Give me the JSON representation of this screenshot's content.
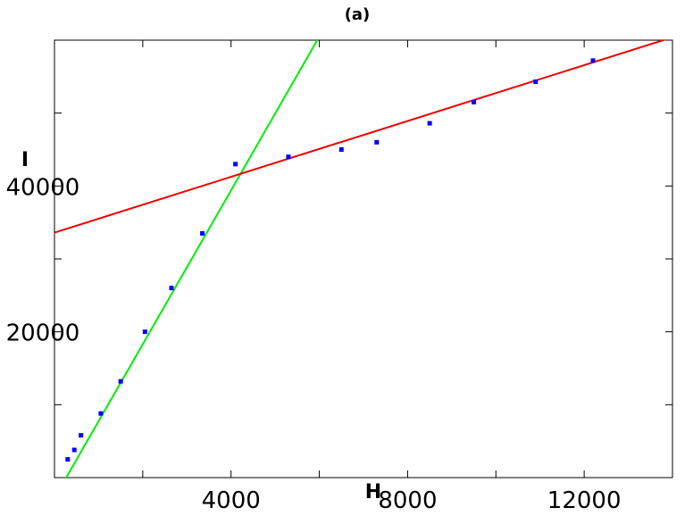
{
  "chart_data": {
    "type": "scatter",
    "title": "(a)",
    "xlabel": "H",
    "ylabel": "I",
    "xlim": [
      0,
      14000
    ],
    "ylim": [
      0,
      60000
    ],
    "xticks": [
      4000,
      8000,
      12000
    ],
    "xtick_labels": [
      "4000",
      "8000",
      "12000"
    ],
    "xticks_minor": [
      2000,
      6000,
      10000
    ],
    "yticks": [
      20000,
      40000
    ],
    "ytick_labels": [
      "20000",
      "40000"
    ],
    "yticks_minor": [
      10000,
      30000,
      50000
    ],
    "grid": false,
    "legend": "none",
    "points": {
      "color": "#0000ff",
      "x": [
        300,
        450,
        600,
        1050,
        1500,
        2050,
        2650,
        3350,
        4100,
        5300,
        6500,
        7300,
        8500,
        9500,
        10900,
        12200
      ],
      "y": [
        2500,
        3800,
        5800,
        8800,
        13200,
        20000,
        26000,
        33500,
        43000,
        44000,
        45000,
        46000,
        48600,
        51500,
        54300,
        57200
      ]
    },
    "fit_lines": [
      {
        "color": "#00ee00",
        "x": [
          0,
          6000
        ],
        "y": [
          -2800,
          60500
        ]
      },
      {
        "color": "#ee0000",
        "x": [
          0,
          14000
        ],
        "y": [
          33600,
          60400
        ]
      }
    ]
  }
}
